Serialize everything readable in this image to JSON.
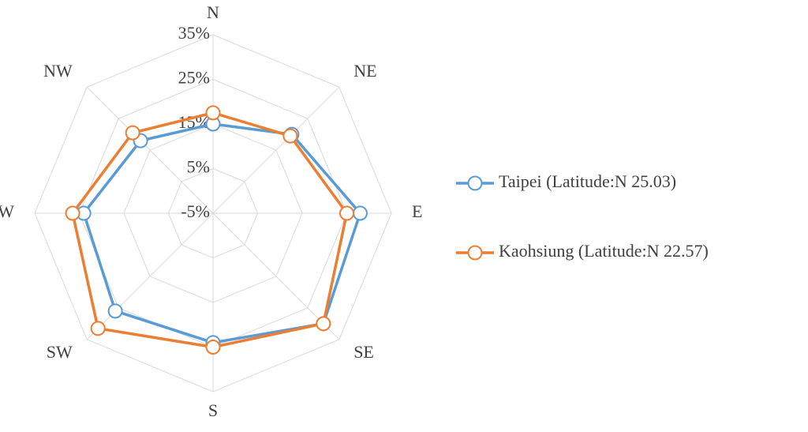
{
  "chart_data": {
    "type": "radar",
    "categories": [
      "N",
      "NE",
      "E",
      "SE",
      "S",
      "SW",
      "W",
      "NW"
    ],
    "series": [
      {
        "name": "Taipei (Latitude:N 25.03)",
        "color": "#5b9bd5",
        "values": [
          15,
          20,
          28,
          30,
          24,
          26,
          24,
          18
        ]
      },
      {
        "name": "Kaohsiung (Latitude:N 22.57)",
        "color": "#ed7d31",
        "values": [
          17.5,
          19.5,
          25,
          30,
          25,
          31.5,
          26.5,
          20.5
        ]
      }
    ],
    "ylim": [
      -5,
      35
    ],
    "yticks": [
      {
        "value": -5,
        "label": "-5%"
      },
      {
        "value": 5,
        "label": "5%"
      },
      {
        "value": 15,
        "label": "15%"
      },
      {
        "value": 25,
        "label": "25%"
      },
      {
        "value": 35,
        "label": "35%"
      }
    ],
    "grid": true,
    "legend": "right"
  }
}
